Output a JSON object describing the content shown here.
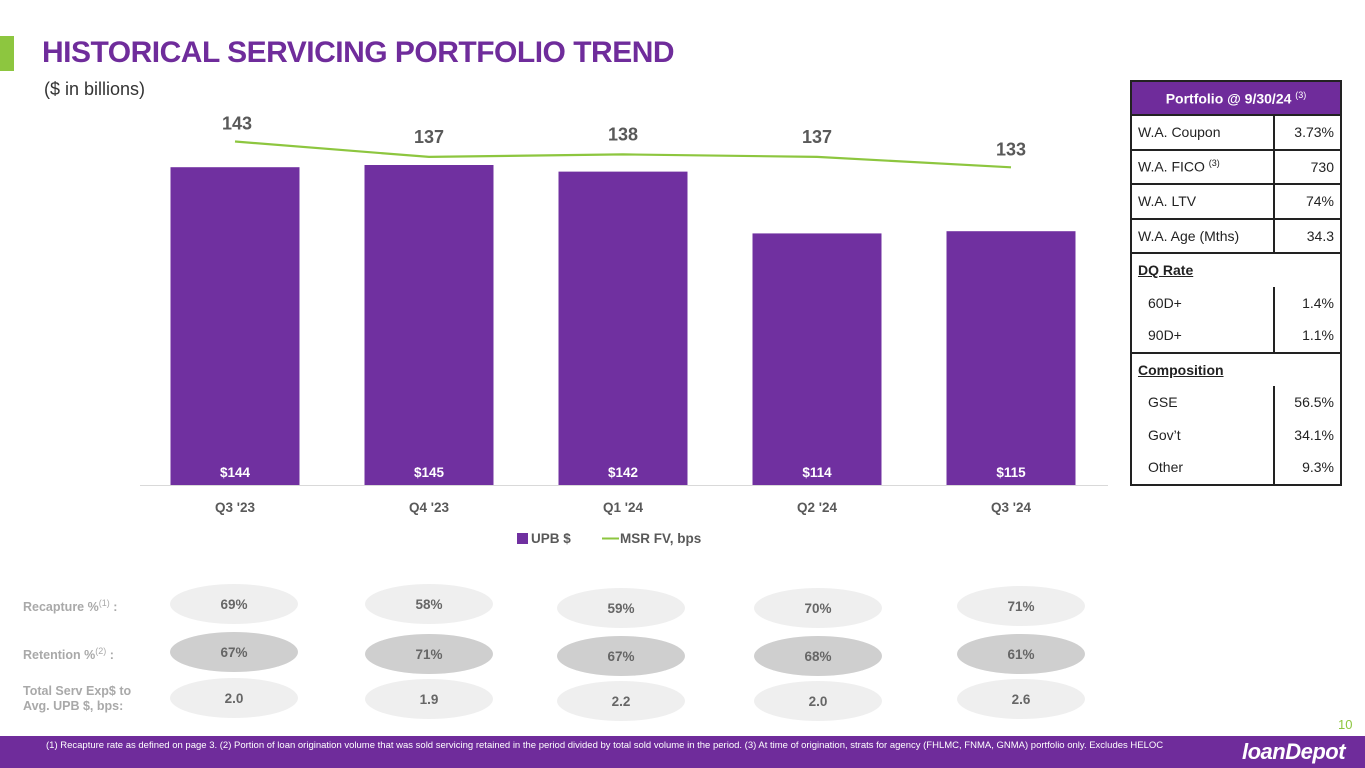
{
  "header": {
    "title": "HISTORICAL SERVICING PORTFOLIO TREND",
    "subtitle": "($ in billions)"
  },
  "chart_data": {
    "type": "bar",
    "categories": [
      "Q3 '23",
      "Q4 '23",
      "Q1 '24",
      "Q2 '24",
      "Q3 '24"
    ],
    "series": [
      {
        "name": "UPB $",
        "kind": "bar",
        "color": "#7030a0",
        "values": [
          144,
          145,
          142,
          114,
          115
        ],
        "labels": [
          "$144",
          "$145",
          "$142",
          "$114",
          "$115"
        ]
      },
      {
        "name": "MSR FV, bps",
        "kind": "line",
        "color": "#8dc63f",
        "values": [
          143,
          137,
          138,
          137,
          133
        ],
        "labels": [
          "143",
          "137",
          "138",
          "137",
          "133"
        ]
      }
    ],
    "legend": [
      "UPB $",
      "MSR FV, bps"
    ],
    "legend_position": "bottom",
    "grid": false
  },
  "metrics": {
    "recapture": {
      "label": "Recapture %",
      "sup": "(1)",
      "suffix": " :",
      "values": [
        "69%",
        "58%",
        "59%",
        "70%",
        "71%"
      ]
    },
    "retention": {
      "label": "Retention %",
      "sup": "(2)",
      "suffix": " :",
      "values": [
        "67%",
        "71%",
        "67%",
        "68%",
        "61%"
      ]
    },
    "serv_exp": {
      "label_line1": "Total Serv Exp$ to",
      "label_line2": "Avg. UPB $, bps:",
      "values": [
        "2.0",
        "1.9",
        "2.2",
        "2.0",
        "2.6"
      ]
    }
  },
  "portfolio_table": {
    "header": "Portfolio @ 9/30/24",
    "header_sup": "(3)",
    "rows": {
      "coupon": {
        "label": "W.A. Coupon",
        "value": "3.73%"
      },
      "fico": {
        "label": "W.A. FICO",
        "sup": "(3)",
        "value": "730"
      },
      "ltv": {
        "label": "W.A. LTV",
        "value": "74%"
      },
      "age": {
        "label": "W.A. Age (Mths)",
        "value": "34.3"
      },
      "dq_header": "DQ Rate",
      "d60": {
        "label": "60D+",
        "value": "1.4%"
      },
      "d90": {
        "label": "90D+",
        "value": "1.1%"
      },
      "comp_header": "Composition",
      "gse": {
        "label": "GSE",
        "value": "56.5%"
      },
      "govt": {
        "label": "Gov’t",
        "value": "34.1%"
      },
      "other": {
        "label": "Other",
        "value": "9.3%"
      }
    }
  },
  "footer": {
    "footnote": "(1) Recapture rate as defined on page 3. (2) Portion of loan origination volume that was sold servicing retained in the period divided by total sold volume in the period. (3) At time of origination, strats for agency (FHLMC, FNMA, GNMA) portfolio only. Excludes HELOC",
    "page_number": "10",
    "logo": "loanDepot"
  },
  "colors": {
    "brand": "#6f2c9b",
    "accent": "#8dc63f"
  }
}
